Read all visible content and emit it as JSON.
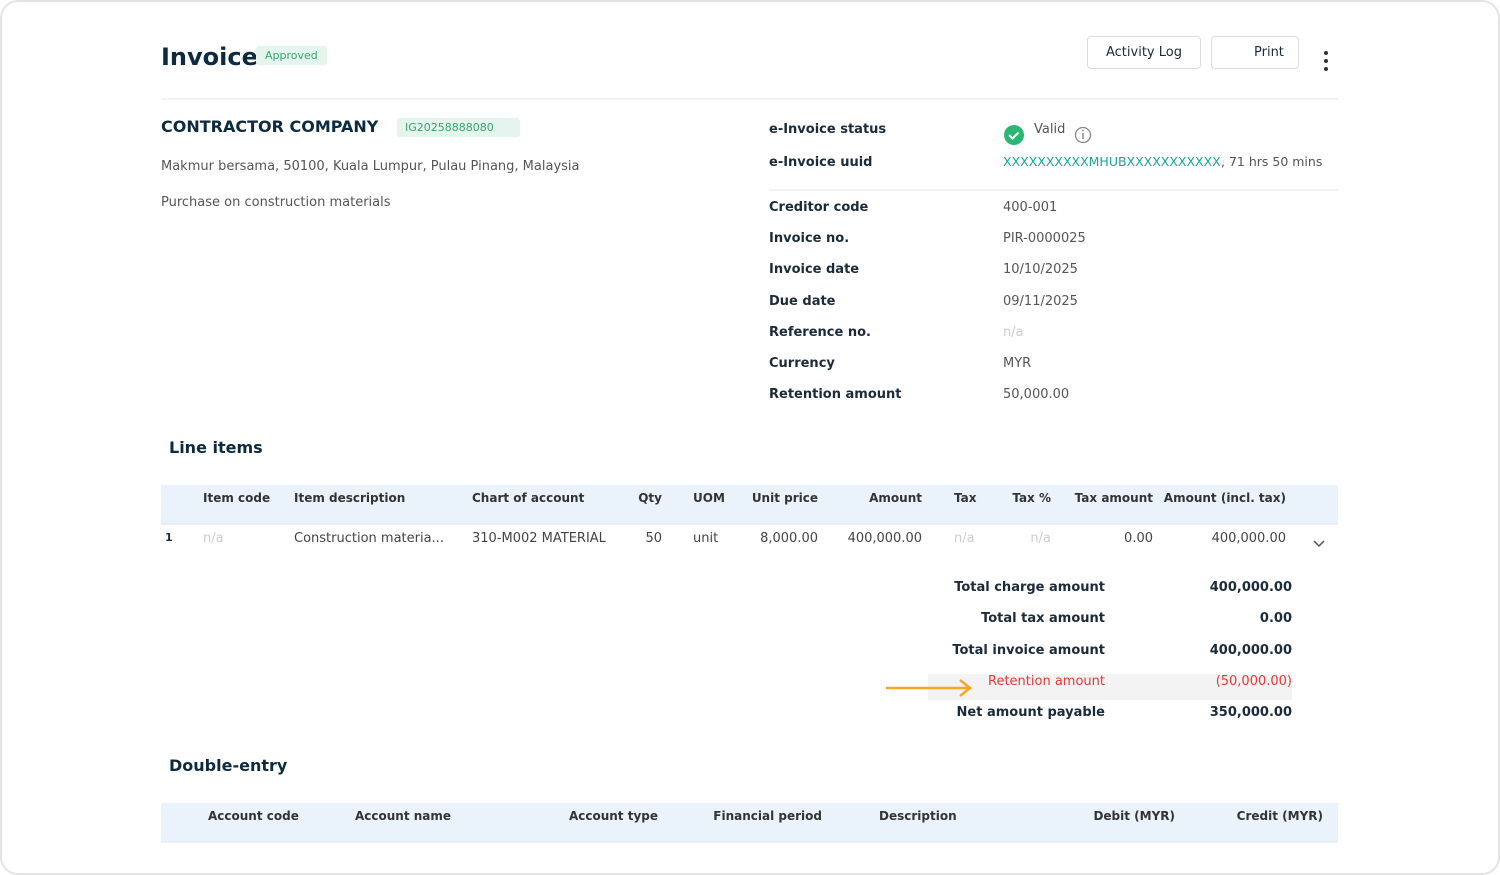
{
  "header": {
    "title": "Invoice",
    "status": "Approved",
    "actions": [
      "Activity Log",
      "Print"
    ]
  },
  "company": {
    "name": "CONTRACTOR COMPANY",
    "id": "IG20258888080",
    "address": "Makmur bersama, 50100, Kuala Lumpur, Pulau Pinang, Malaysia",
    "description": "Purchase on construction materials"
  },
  "einvoice": {
    "status_label": "e-Invoice status",
    "status": "Valid",
    "uuid_label": "e-Invoice uuid",
    "uuid": "XXXXXXXXXXMHUBXXXXXXXXXXX",
    "uuid_suffix": ", 71 hrs 50 mins"
  },
  "details": [
    {
      "label": "Creditor code",
      "value": "400-001"
    },
    {
      "label": "Invoice no.",
      "value": "PIR-0000025"
    },
    {
      "label": "Invoice date",
      "value": "10/10/2025"
    },
    {
      "label": "Due date",
      "value": "09/11/2025"
    },
    {
      "label": "Reference no.",
      "value": "n/a"
    },
    {
      "label": "Currency",
      "value": "MYR"
    },
    {
      "label": "Retention amount",
      "value": "50,000.00"
    }
  ],
  "line_items": {
    "title": "Line items",
    "columns": [
      "Item code",
      "Item description",
      "Chart of account",
      "Qty",
      "UOM",
      "Unit price",
      "Amount",
      "Tax",
      "Tax %",
      "Tax amount",
      "Amount (incl. tax)"
    ],
    "rows": [
      {
        "no": "1",
        "cells": [
          "n/a",
          "Construction materia...",
          "310-M002 MATERIAL",
          "50",
          "unit",
          "8,000.00",
          "400,000.00",
          "n/a",
          "n/a",
          "0.00",
          "400,000.00"
        ]
      }
    ]
  },
  "totals": [
    {
      "label": "Total charge amount",
      "value": "400,000.00"
    },
    {
      "label": "Total tax amount",
      "value": "0.00"
    },
    {
      "label": "Total invoice amount",
      "value": "400,000.00"
    },
    {
      "label": "Retention amount",
      "value": "(50,000.00)"
    },
    {
      "label": "Net amount payable",
      "value": "350,000.00"
    }
  ],
  "double_entry": {
    "title": "Double-entry",
    "columns": [
      "Account code",
      "Account name",
      "Account type",
      "Financial period",
      "Description",
      "Debit (MYR)",
      "Credit (MYR)"
    ]
  }
}
